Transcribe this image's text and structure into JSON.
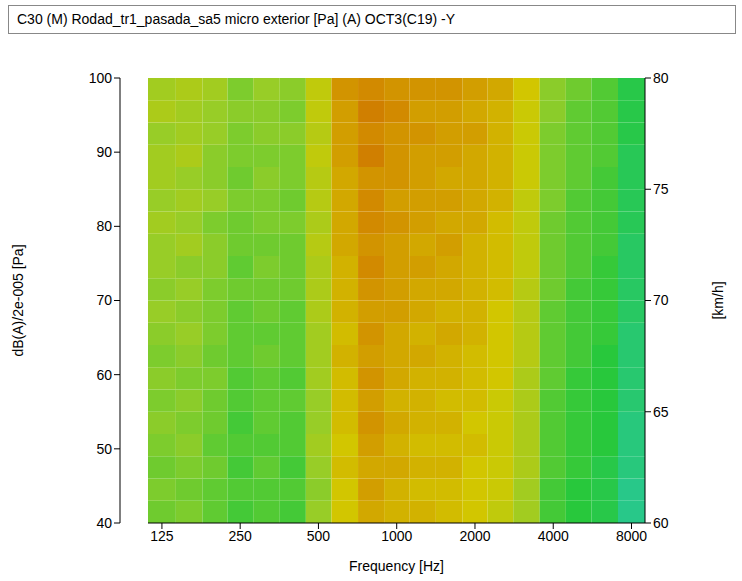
{
  "chart_data": {
    "type": "heatmap",
    "title": "C30 (M)  Rodad_tr1_pasada_sa5  micro exterior  [Pa]   (A)  OCT3(C19)  -Y",
    "x_label": "Frequency [Hz]",
    "y_label": "[km/h]",
    "colorbar_label": "dB(A)/2e-005 [Pa]",
    "log": "x",
    "x": [
      125,
      160,
      200,
      250,
      315,
      400,
      500,
      630,
      800,
      1000,
      1250,
      1600,
      2000,
      2500,
      3150,
      4000,
      5000,
      6300,
      8000
    ],
    "xlim": [
      110.5,
      9015
    ],
    "xticks": [
      125,
      250,
      500,
      1000,
      2000,
      4000,
      8000
    ],
    "y": [
      60.5,
      61.5,
      62.5,
      63.5,
      64.5,
      65.5,
      66.5,
      67.5,
      68.5,
      69.5,
      70.5,
      71.5,
      72.5,
      73.5,
      74.5,
      75.5,
      76.5,
      77.5,
      78.5,
      79.5
    ],
    "ylim": [
      60,
      80
    ],
    "yticks": [
      60,
      65,
      70,
      75,
      80
    ],
    "values": [
      [
        75,
        76,
        74,
        72,
        73,
        72,
        78,
        84,
        87,
        86,
        86,
        85,
        84,
        82,
        79,
        72,
        70,
        69,
        64
      ],
      [
        76,
        75,
        74,
        73,
        73,
        73,
        77,
        84,
        88,
        86,
        85,
        85,
        84,
        83,
        79,
        72,
        70,
        69,
        64
      ],
      [
        75,
        76,
        75,
        72,
        74,
        72,
        78,
        85,
        87,
        87,
        86,
        86,
        84,
        83,
        80,
        73,
        71,
        69,
        65
      ],
      [
        76,
        77,
        74,
        73,
        73,
        73,
        79,
        84,
        88,
        86,
        85,
        85,
        85,
        83,
        80,
        73,
        71,
        70,
        65
      ],
      [
        77,
        76,
        75,
        72,
        74,
        73,
        78,
        85,
        89,
        87,
        86,
        86,
        84,
        83,
        80,
        73,
        71,
        70,
        65
      ],
      [
        76,
        77,
        75,
        73,
        74,
        74,
        78,
        85,
        88,
        86,
        86,
        85,
        85,
        83,
        80,
        73,
        71,
        70,
        66
      ],
      [
        77,
        76,
        76,
        73,
        74,
        73,
        79,
        85,
        89,
        87,
        86,
        86,
        85,
        84,
        80,
        74,
        71,
        70,
        66
      ],
      [
        76,
        77,
        75,
        74,
        75,
        74,
        79,
        86,
        88,
        87,
        87,
        86,
        85,
        84,
        81,
        74,
        72,
        70,
        66
      ],
      [
        77,
        78,
        76,
        74,
        74,
        74,
        79,
        85,
        89,
        87,
        86,
        87,
        86,
        84,
        81,
        74,
        72,
        71,
        66
      ],
      [
        78,
        77,
        76,
        74,
        75,
        74,
        80,
        86,
        88,
        88,
        87,
        86,
        86,
        84,
        81,
        74,
        72,
        71,
        67
      ],
      [
        77,
        78,
        76,
        75,
        75,
        75,
        80,
        86,
        89,
        88,
        87,
        87,
        86,
        85,
        81,
        75,
        72,
        71,
        67
      ],
      [
        78,
        77,
        77,
        74,
        76,
        75,
        80,
        86,
        90,
        88,
        88,
        87,
        86,
        85,
        82,
        75,
        73,
        71,
        67
      ],
      [
        78,
        79,
        77,
        75,
        75,
        75,
        81,
        87,
        89,
        88,
        87,
        88,
        86,
        85,
        82,
        75,
        73,
        72,
        67
      ],
      [
        79,
        78,
        76,
        75,
        76,
        76,
        80,
        87,
        90,
        89,
        88,
        87,
        87,
        85,
        82,
        75,
        73,
        72,
        68
      ],
      [
        78,
        79,
        78,
        76,
        76,
        75,
        81,
        87,
        90,
        88,
        88,
        88,
        87,
        86,
        82,
        76,
        73,
        72,
        68
      ],
      [
        79,
        78,
        77,
        75,
        77,
        76,
        81,
        87,
        89,
        89,
        88,
        87,
        87,
        86,
        83,
        76,
        74,
        72,
        68
      ],
      [
        79,
        80,
        77,
        76,
        76,
        76,
        82,
        88,
        91,
        89,
        88,
        88,
        87,
        86,
        83,
        76,
        74,
        73,
        68
      ],
      [
        78,
        79,
        78,
        76,
        77,
        77,
        81,
        88,
        90,
        89,
        89,
        88,
        88,
        86,
        83,
        76,
        74,
        73,
        69
      ],
      [
        80,
        79,
        78,
        77,
        77,
        76,
        82,
        88,
        91,
        90,
        88,
        88,
        87,
        86,
        83,
        77,
        74,
        73,
        69
      ],
      [
        79,
        80,
        79,
        76,
        78,
        77,
        82,
        89,
        90,
        89,
        89,
        89,
        88,
        87,
        84,
        77,
        75,
        73,
        69
      ]
    ],
    "colorbar_range": [
      40,
      100
    ],
    "colorbar_ticks": [
      40,
      50,
      60,
      70,
      80,
      90,
      100
    ]
  }
}
